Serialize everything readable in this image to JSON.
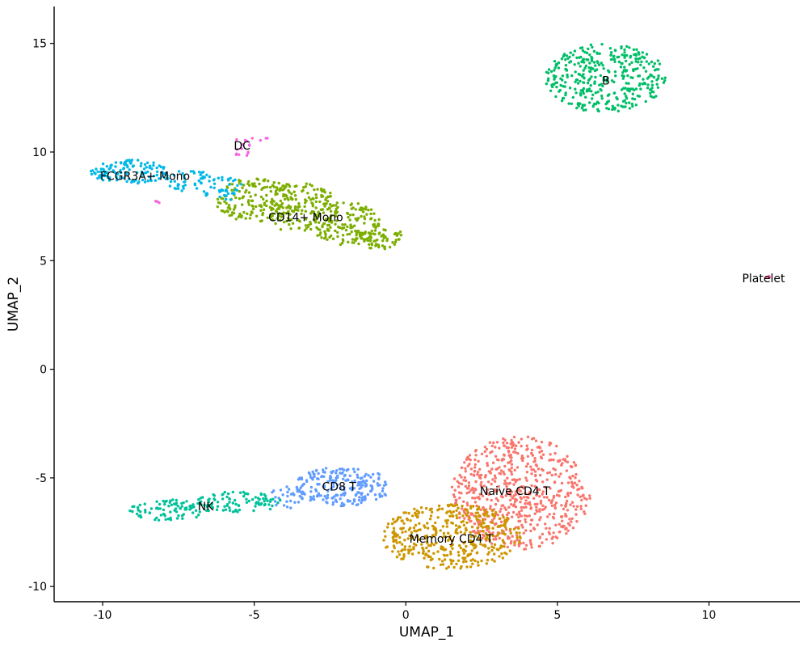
{
  "chart_data": {
    "type": "scatter",
    "title": "",
    "xlabel": "UMAP_1",
    "ylabel": "UMAP_2",
    "xlim": [
      -11.6,
      13.0
    ],
    "ylim": [
      -10.7,
      16.7
    ],
    "x_ticks": [
      -10,
      -5,
      0,
      5,
      10
    ],
    "y_ticks": [
      -10,
      -5,
      0,
      5,
      10,
      15
    ],
    "x_tick_labels": [
      "-10",
      "-5",
      "0",
      "5",
      "10"
    ],
    "y_tick_labels": [
      "-10",
      "-5",
      "0",
      "5",
      "10",
      "15"
    ],
    "grid": false,
    "legend": "none",
    "clusters": [
      {
        "name": "Naive CD4 T",
        "color": "#F8766D",
        "label_pos": [
          3.6,
          -5.6
        ],
        "regions": [
          {
            "cx": 3.8,
            "cy": -5.7,
            "rx": 2.3,
            "ry": 2.6,
            "n": 640
          }
        ]
      },
      {
        "name": "Memory CD4 T",
        "color": "#CD9600",
        "label_pos": [
          1.5,
          -7.8
        ],
        "regions": [
          {
            "cx": 1.5,
            "cy": -7.7,
            "rx": 2.3,
            "ry": 1.5,
            "n": 420
          }
        ]
      },
      {
        "name": "CD14+ Mono",
        "color": "#7CAE00",
        "label_pos": [
          -3.3,
          7.0
        ],
        "regions": [
          {
            "cx": -5.0,
            "cy": 7.8,
            "rx": 1.3,
            "ry": 1.0,
            "n": 150
          },
          {
            "cx": -3.5,
            "cy": 7.4,
            "rx": 1.3,
            "ry": 1.2,
            "n": 170
          },
          {
            "cx": -2.0,
            "cy": 6.7,
            "rx": 1.2,
            "ry": 1.0,
            "n": 140
          },
          {
            "cx": -0.9,
            "cy": 6.1,
            "rx": 0.8,
            "ry": 0.6,
            "n": 70
          }
        ]
      },
      {
        "name": "B",
        "color": "#00BE67",
        "label_pos": [
          6.6,
          13.3
        ],
        "regions": [
          {
            "cx": 6.6,
            "cy": 13.4,
            "rx": 2.0,
            "ry": 1.6,
            "n": 370
          }
        ]
      },
      {
        "name": "CD8 T",
        "color": "#619CFF",
        "label_pos": [
          -2.2,
          -5.4
        ],
        "regions": [
          {
            "cx": -2.1,
            "cy": -5.4,
            "rx": 1.6,
            "ry": 0.9,
            "n": 220
          },
          {
            "cx": -3.9,
            "cy": -5.9,
            "rx": 0.6,
            "ry": 0.5,
            "n": 30
          }
        ]
      },
      {
        "name": "FCGR3A+ Mono",
        "color": "#00B8E7",
        "label_pos": [
          -8.6,
          8.9
        ],
        "regions": [
          {
            "cx": -9.1,
            "cy": 9.1,
            "rx": 1.3,
            "ry": 0.55,
            "n": 120
          },
          {
            "cx": -7.2,
            "cy": 8.7,
            "rx": 0.8,
            "ry": 0.5,
            "n": 45
          },
          {
            "cx": -6.0,
            "cy": 8.3,
            "rx": 0.7,
            "ry": 0.6,
            "n": 40
          }
        ]
      },
      {
        "name": "NK",
        "color": "#00C19A",
        "label_pos": [
          -6.6,
          -6.3
        ],
        "regions": [
          {
            "cx": -7.8,
            "cy": -6.5,
            "rx": 1.3,
            "ry": 0.5,
            "n": 90
          },
          {
            "cx": -5.5,
            "cy": -6.1,
            "rx": 1.4,
            "ry": 0.5,
            "n": 90
          }
        ]
      },
      {
        "name": "DC",
        "color": "#F564E3",
        "label_pos": [
          -5.4,
          10.3
        ],
        "regions": [
          {
            "cx": -5.4,
            "cy": 10.2,
            "rx": 0.35,
            "ry": 0.5,
            "n": 14
          },
          {
            "cx": -8.0,
            "cy": 7.75,
            "rx": 0.3,
            "ry": 0.1,
            "n": 4
          },
          {
            "cx": -4.8,
            "cy": 10.6,
            "rx": 0.3,
            "ry": 0.1,
            "n": 4
          }
        ]
      },
      {
        "name": "Platelet",
        "color": "#FF64B0",
        "label_pos": [
          11.8,
          4.2
        ],
        "regions": [
          {
            "cx": 11.95,
            "cy": 4.25,
            "rx": 0.08,
            "ry": 0.05,
            "n": 4
          }
        ]
      }
    ]
  }
}
